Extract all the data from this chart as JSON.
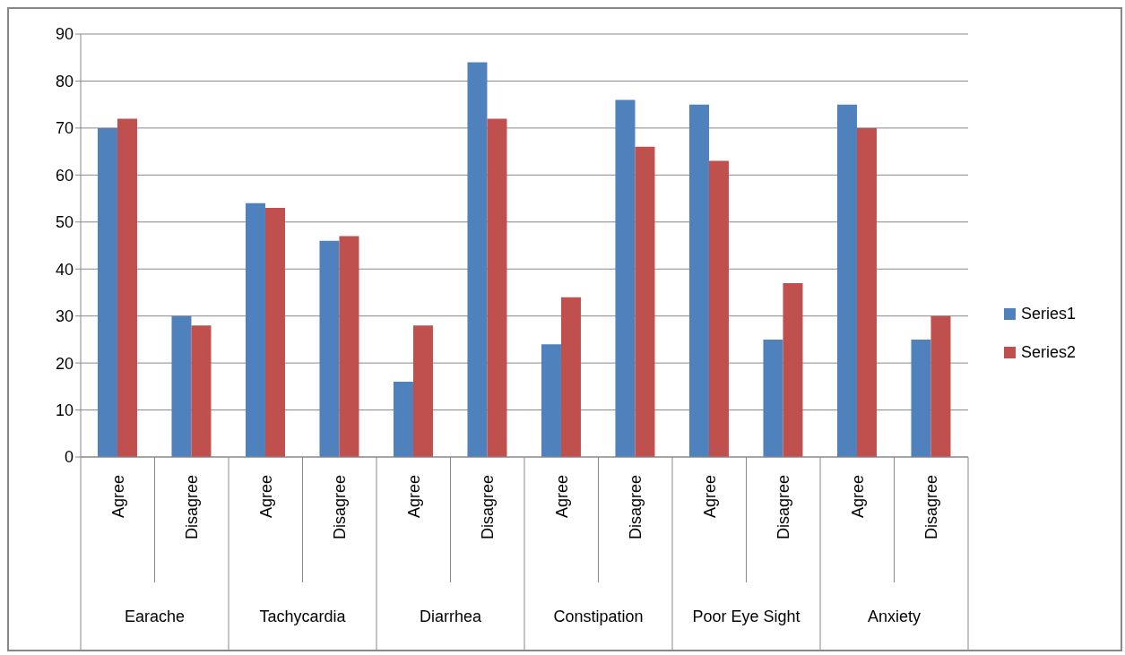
{
  "chart_data": {
    "type": "bar",
    "categories": [
      "Agree",
      "Disagree",
      "Agree",
      "Disagree",
      "Agree",
      "Disagree",
      "Agree",
      "Disagree",
      "Agree",
      "Disagree",
      "Agree",
      "Disagree"
    ],
    "series": [
      {
        "name": "Series1",
        "color": "#4f81bd",
        "values": [
          70,
          30,
          54,
          46,
          16,
          84,
          24,
          76,
          75,
          25,
          75,
          25
        ]
      },
      {
        "name": "Series2",
        "color": "#c0504d",
        "values": [
          72,
          28,
          53,
          47,
          28,
          72,
          34,
          66,
          63,
          37,
          70,
          30
        ]
      }
    ],
    "annotations": [
      "Earache",
      "Tachycardia",
      "Diarrhea",
      "Constipation",
      "Poor Eye Sight",
      "Anxiety"
    ],
    "ylim": [
      0,
      90
    ],
    "yticks": [
      0,
      10,
      20,
      30,
      40,
      50,
      60,
      70,
      80,
      90
    ],
    "grid": "y",
    "legend": "right"
  }
}
